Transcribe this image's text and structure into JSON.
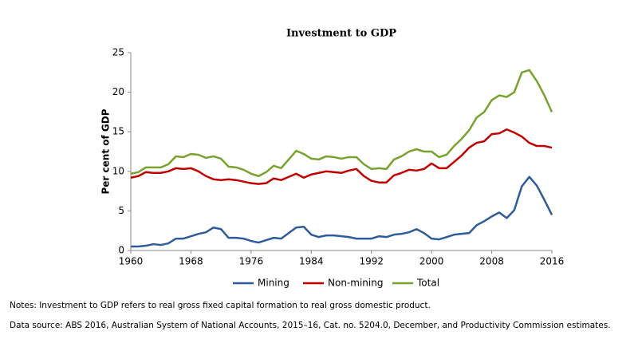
{
  "chart_data": {
    "type": "line",
    "title": "Investment to GDP",
    "y_label": "Per cent of GDP",
    "x": [
      1960,
      1961,
      1962,
      1963,
      1964,
      1965,
      1966,
      1967,
      1968,
      1969,
      1970,
      1971,
      1972,
      1973,
      1974,
      1975,
      1976,
      1977,
      1978,
      1979,
      1980,
      1981,
      1982,
      1983,
      1984,
      1985,
      1986,
      1987,
      1988,
      1989,
      1990,
      1991,
      1992,
      1993,
      1994,
      1995,
      1996,
      1997,
      1998,
      1999,
      2000,
      2001,
      2002,
      2003,
      2004,
      2005,
      2006,
      2007,
      2008,
      2009,
      2010,
      2011,
      2012,
      2013,
      2014,
      2015,
      2016
    ],
    "series": [
      {
        "name": "Mining",
        "color": "#2e5c9a",
        "values": [
          0.5,
          0.5,
          0.6,
          0.8,
          0.7,
          0.9,
          1.5,
          1.5,
          1.8,
          2.1,
          2.3,
          2.9,
          2.7,
          1.6,
          1.6,
          1.5,
          1.2,
          1.0,
          1.3,
          1.6,
          1.5,
          2.2,
          2.9,
          3.0,
          2.0,
          1.7,
          1.9,
          1.9,
          1.8,
          1.7,
          1.5,
          1.5,
          1.5,
          1.8,
          1.7,
          2.0,
          2.1,
          2.3,
          2.7,
          2.2,
          1.5,
          1.4,
          1.7,
          2.0,
          2.1,
          2.2,
          3.2,
          3.7,
          4.3,
          4.8,
          4.1,
          5.1,
          8.1,
          9.3,
          8.2,
          6.4,
          4.5
        ]
      },
      {
        "name": "Non-mining",
        "color": "#c00000",
        "values": [
          9.2,
          9.4,
          9.9,
          9.8,
          9.8,
          10.0,
          10.4,
          10.3,
          10.4,
          10.0,
          9.4,
          9.0,
          8.9,
          9.0,
          8.9,
          8.7,
          8.5,
          8.4,
          8.5,
          9.1,
          8.9,
          9.3,
          9.7,
          9.2,
          9.6,
          9.8,
          10.0,
          9.9,
          9.8,
          10.1,
          10.3,
          9.4,
          8.8,
          8.6,
          8.6,
          9.5,
          9.8,
          10.2,
          10.1,
          10.3,
          11.0,
          10.4,
          10.4,
          11.2,
          12.0,
          13.0,
          13.6,
          13.8,
          14.7,
          14.8,
          15.3,
          14.9,
          14.4,
          13.6,
          13.2,
          13.2,
          13.0
        ]
      },
      {
        "name": "Total",
        "color": "#78a22f",
        "values": [
          9.7,
          9.9,
          10.5,
          10.5,
          10.5,
          10.9,
          11.9,
          11.8,
          12.2,
          12.1,
          11.7,
          11.9,
          11.6,
          10.6,
          10.5,
          10.2,
          9.7,
          9.4,
          9.9,
          10.7,
          10.4,
          11.5,
          12.6,
          12.2,
          11.6,
          11.5,
          11.9,
          11.8,
          11.6,
          11.8,
          11.8,
          10.9,
          10.3,
          10.4,
          10.3,
          11.5,
          11.9,
          12.5,
          12.8,
          12.5,
          12.5,
          11.8,
          12.1,
          13.2,
          14.1,
          15.2,
          16.8,
          17.5,
          19.0,
          19.6,
          19.4,
          20.0,
          22.5,
          22.8,
          21.4,
          19.6,
          17.5
        ]
      }
    ],
    "xlim": [
      1960,
      2016
    ],
    "xticks": [
      1960,
      1968,
      1976,
      1984,
      1992,
      2000,
      2008,
      2016
    ],
    "ylim": [
      0,
      25
    ],
    "yticks": [
      0,
      5,
      10,
      15,
      20,
      25
    ],
    "grid": false,
    "legend": "bottom",
    "notes": "Notes: Investment to GDP refers to real gross fixed capital formation to real gross domestic product.",
    "source": "Data source: ABS 2016, Australian System of National Accounts, 2015–16, Cat. no. 5204.0, December, and Productivity Commission estimates."
  }
}
